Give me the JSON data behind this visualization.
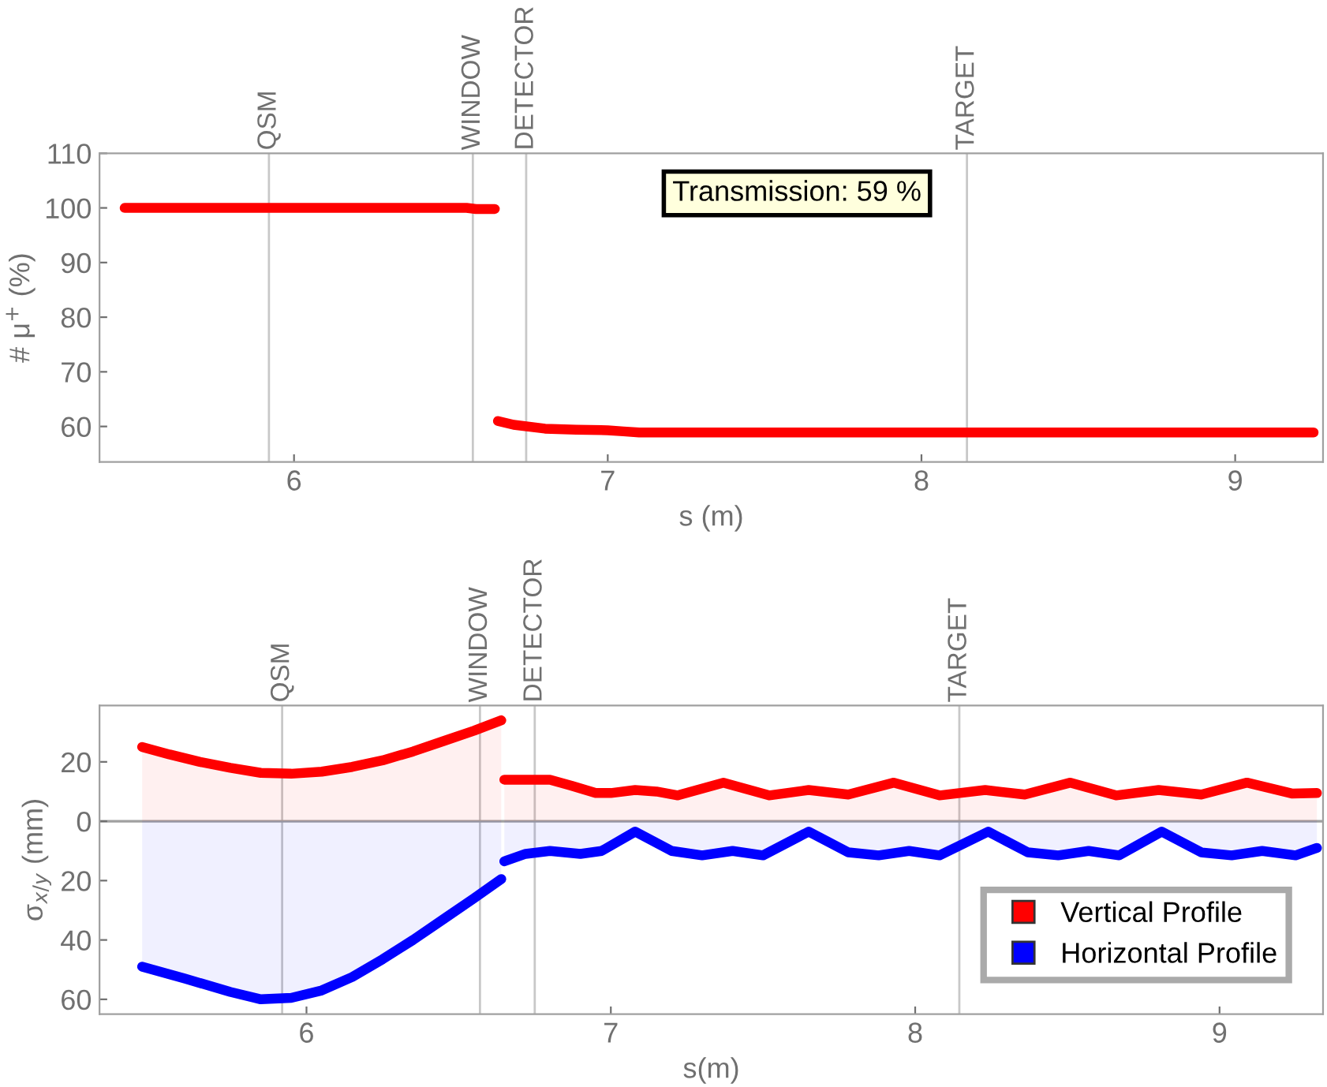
{
  "chart_data": [
    {
      "type": "line",
      "ylabel": "# μ$^{+}$ (%)",
      "xlabel": "s (m)",
      "xlim": [
        5.38,
        9.28
      ],
      "xticks": [
        6,
        7,
        8,
        9
      ],
      "ylim": [
        53.5,
        110
      ],
      "yticks": [
        60,
        70,
        80,
        90,
        100,
        110
      ],
      "grid": false,
      "marker": "none",
      "line_style": "solid",
      "x": [
        5.46,
        5.8,
        6.2,
        6.55,
        6.58,
        6.64,
        6.645,
        6.65,
        6.7,
        6.8,
        6.9,
        7.0,
        7.05,
        7.1,
        7.5,
        8.0,
        8.5,
        9.0,
        9.25
      ],
      "series": [
        {
          "color": "#ff0000",
          "values": [
            100,
            100,
            100,
            100,
            99.8,
            99.8,
            null,
            61,
            60.3,
            59.6,
            59.4,
            59.3,
            59.1,
            58.9,
            58.9,
            58.9,
            58.9,
            58.9,
            58.9
          ]
        }
      ],
      "ref_lines": [
        {
          "axis": "x",
          "value": 5.92,
          "label": "QSM",
          "color": "#c8c8c8"
        },
        {
          "axis": "x",
          "value": 6.57,
          "label": "WINDOW",
          "color": "#c8c8c8"
        },
        {
          "axis": "x",
          "value": 6.74,
          "label": "DETECTOR",
          "color": "#c8c8c8"
        },
        {
          "axis": "x",
          "value": 8.145,
          "label": "TARGET",
          "color": "#c8c8c8"
        }
      ],
      "annotations": [
        "Transmission: 59 %"
      ]
    },
    {
      "type": "area",
      "ylabel": "σ$_{x/y}$ (mm)",
      "xlabel": "s(m)",
      "xlim": [
        5.32,
        9.34
      ],
      "xticks": [
        6,
        7,
        8,
        9
      ],
      "ylim": [
        -65,
        39
      ],
      "yticks": [
        {
          "value": -60,
          "label": "60"
        },
        {
          "value": -40,
          "label": "40"
        },
        {
          "value": -20,
          "label": "20"
        },
        0,
        20
      ],
      "grid": false,
      "marker": "none",
      "line_style": "solid",
      "legend": "bottom right",
      "series": [
        {
          "name": "Vertical Profile",
          "color": "#ff0000",
          "x": [
            5.46,
            5.55,
            5.65,
            5.75,
            5.85,
            5.95,
            6.05,
            6.15,
            6.25,
            6.35,
            6.45,
            6.55,
            6.64,
            6.645,
            6.65,
            6.8,
            6.87,
            6.95,
            7.0,
            7.08,
            7.15,
            7.22,
            7.37,
            7.52,
            7.65,
            7.78,
            7.93,
            8.08,
            8.23,
            8.36,
            8.51,
            8.66,
            8.8,
            8.94,
            9.09,
            9.24,
            9.32
          ],
          "values": [
            25,
            22.5,
            20,
            18,
            16.3,
            16,
            16.7,
            18.3,
            20.5,
            23.5,
            27,
            30.5,
            34,
            null,
            14,
            14,
            12,
            9.5,
            9.5,
            10.5,
            10,
            8.7,
            13,
            8.7,
            10.5,
            9,
            13,
            8.7,
            10.5,
            9,
            13,
            8.7,
            10.5,
            9,
            13,
            9.3,
            9.5
          ]
        },
        {
          "name": "Horizontal Profile",
          "color": "#0000ff",
          "x": [
            5.46,
            5.6,
            5.75,
            5.85,
            5.95,
            6.05,
            6.15,
            6.25,
            6.35,
            6.45,
            6.55,
            6.64,
            6.645,
            6.65,
            6.72,
            6.8,
            6.9,
            6.97,
            7.08,
            7.2,
            7.3,
            7.4,
            7.5,
            7.65,
            7.78,
            7.88,
            7.98,
            8.08,
            8.24,
            8.37,
            8.47,
            8.57,
            8.67,
            8.81,
            8.94,
            9.04,
            9.14,
            9.25,
            9.32
          ],
          "values": [
            -49,
            -53,
            -57.5,
            -60,
            -59.5,
            -57,
            -52.5,
            -46.5,
            -40,
            -33,
            -26,
            -19.5,
            null,
            -13.5,
            -11,
            -10,
            -11,
            -10,
            -3.5,
            -10,
            -11.5,
            -10,
            -11.5,
            -3.5,
            -10.5,
            -11.5,
            -10,
            -11.5,
            -3.5,
            -10.5,
            -11.5,
            -10,
            -11.5,
            -3.5,
            -10.5,
            -11.5,
            -10,
            -11.5,
            -9
          ]
        }
      ],
      "ref_lines": [
        {
          "axis": "x",
          "value": 5.92,
          "label": "QSM",
          "color": "#c8c8c8"
        },
        {
          "axis": "x",
          "value": 6.57,
          "label": "WINDOW",
          "color": "#c8c8c8"
        },
        {
          "axis": "x",
          "value": 6.75,
          "label": "DETECTOR",
          "color": "#c8c8c8"
        },
        {
          "axis": "x",
          "value": 8.145,
          "label": "TARGET",
          "color": "#c8c8c8"
        },
        {
          "axis": "y",
          "value": 0,
          "color": "#a0a0a0"
        }
      ]
    }
  ]
}
